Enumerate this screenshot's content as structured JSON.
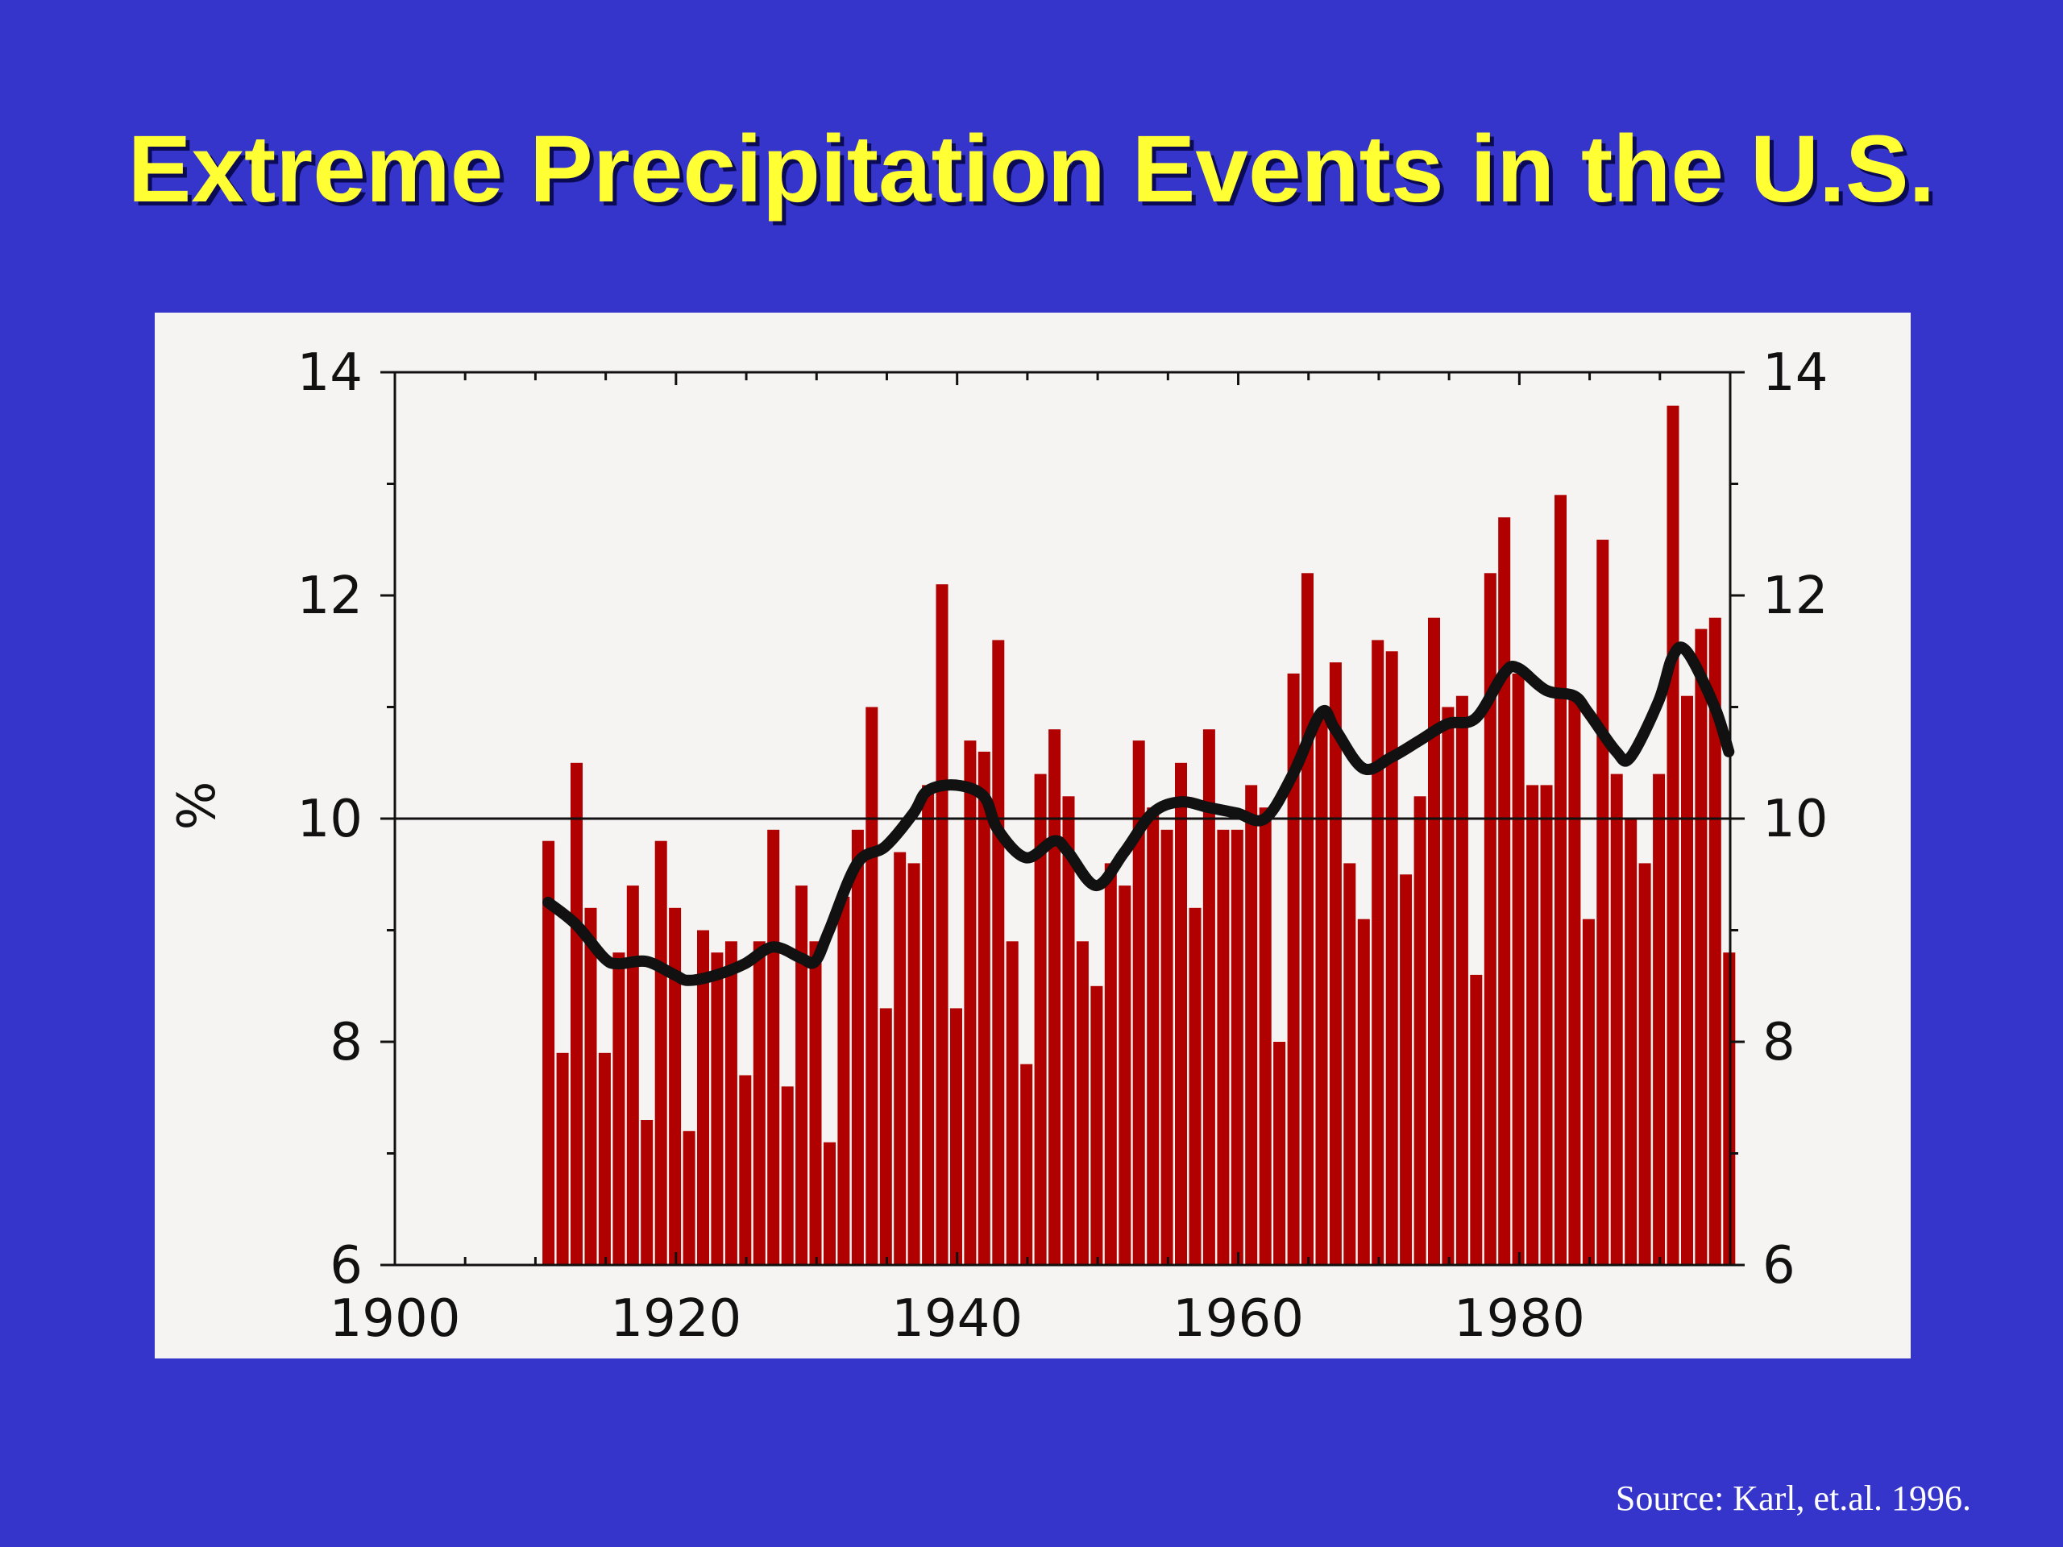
{
  "title": "Extreme Precipitation Events in the U.S.",
  "source": "Source: Karl, et.al. 1996.",
  "colors": {
    "background": "#3535cc",
    "title": "#ffff33",
    "bars": "#b00000",
    "line": "#111111",
    "panel": "#f6f4f2"
  },
  "chart_data": {
    "type": "bar",
    "ylabel": "%",
    "xlim": [
      1900,
      1995
    ],
    "ylim": [
      6,
      14
    ],
    "reference_line": 10,
    "x_ticks": [
      "1900",
      "1920",
      "1940",
      "1960",
      "1980"
    ],
    "y_ticks_left": [
      "6",
      "8",
      "10",
      "12",
      "14"
    ],
    "y_ticks_right": [
      "6",
      "8",
      "10",
      "12",
      "14"
    ],
    "grid": false,
    "series": [
      {
        "type": "bar",
        "x": [
          1910,
          1911,
          1912,
          1913,
          1914,
          1915,
          1916,
          1917,
          1918,
          1919,
          1920,
          1921,
          1922,
          1923,
          1924,
          1925,
          1926,
          1927,
          1928,
          1929,
          1930,
          1931,
          1932,
          1933,
          1934,
          1935,
          1936,
          1937,
          1938,
          1939,
          1940,
          1941,
          1942,
          1943,
          1944,
          1945,
          1946,
          1947,
          1948,
          1949,
          1950,
          1951,
          1952,
          1953,
          1954,
          1955,
          1956,
          1957,
          1958,
          1959,
          1960,
          1961,
          1962,
          1963,
          1964,
          1965,
          1966,
          1967,
          1968,
          1969,
          1970,
          1971,
          1972,
          1973,
          1974,
          1975,
          1976,
          1977,
          1978,
          1979,
          1980,
          1981,
          1982,
          1983,
          1984,
          1985,
          1986,
          1987,
          1988,
          1989,
          1990,
          1991,
          1992,
          1993,
          1994
        ],
        "values": [
          9.8,
          7.9,
          10.5,
          9.2,
          7.9,
          8.8,
          9.4,
          7.3,
          9.8,
          9.2,
          7.2,
          9.0,
          8.8,
          8.9,
          7.7,
          8.9,
          9.9,
          7.6,
          9.4,
          8.9,
          7.1,
          9.3,
          9.9,
          11.0,
          8.3,
          9.7,
          9.6,
          10.3,
          12.1,
          8.3,
          10.7,
          10.6,
          11.6,
          8.9,
          7.8,
          10.4,
          10.8,
          10.2,
          8.9,
          8.5,
          9.6,
          9.4,
          10.7,
          10.1,
          9.9,
          10.5,
          9.2,
          10.8,
          9.9,
          9.9,
          10.3,
          10.1,
          8.0,
          11.3,
          12.2,
          10.9,
          11.4,
          9.6,
          9.1,
          11.6,
          11.5,
          9.5,
          10.2,
          11.8,
          11.0,
          11.1,
          8.6,
          12.2,
          12.7,
          11.3,
          10.3,
          10.3,
          12.9,
          11.1,
          9.1,
          12.5,
          10.4,
          10.0,
          9.6,
          10.4,
          13.7,
          11.1,
          11.7,
          11.8,
          8.8
        ]
      },
      {
        "type": "line",
        "x": [
          1910,
          1912,
          1914,
          1915,
          1917,
          1919,
          1920,
          1922,
          1924,
          1926,
          1928,
          1929,
          1930,
          1932,
          1934,
          1936,
          1937,
          1939,
          1941,
          1942,
          1944,
          1946,
          1947,
          1949,
          1951,
          1953,
          1955,
          1957,
          1959,
          1961,
          1963,
          1965,
          1966,
          1968,
          1970,
          1972,
          1974,
          1976,
          1978,
          1979,
          1981,
          1983,
          1984,
          1986,
          1987,
          1989,
          1990,
          1991,
          1993,
          1994
        ],
        "values": [
          9.25,
          9.05,
          8.75,
          8.7,
          8.72,
          8.6,
          8.55,
          8.6,
          8.7,
          8.85,
          8.75,
          8.72,
          9.0,
          9.6,
          9.75,
          10.05,
          10.25,
          10.3,
          10.2,
          9.9,
          9.65,
          9.8,
          9.7,
          9.4,
          9.7,
          10.05,
          10.15,
          10.1,
          10.05,
          10.0,
          10.4,
          10.95,
          10.8,
          10.45,
          10.55,
          10.7,
          10.85,
          10.9,
          11.3,
          11.35,
          11.15,
          11.1,
          10.95,
          10.6,
          10.55,
          11.05,
          11.45,
          11.5,
          11.0,
          10.6
        ]
      }
    ]
  }
}
